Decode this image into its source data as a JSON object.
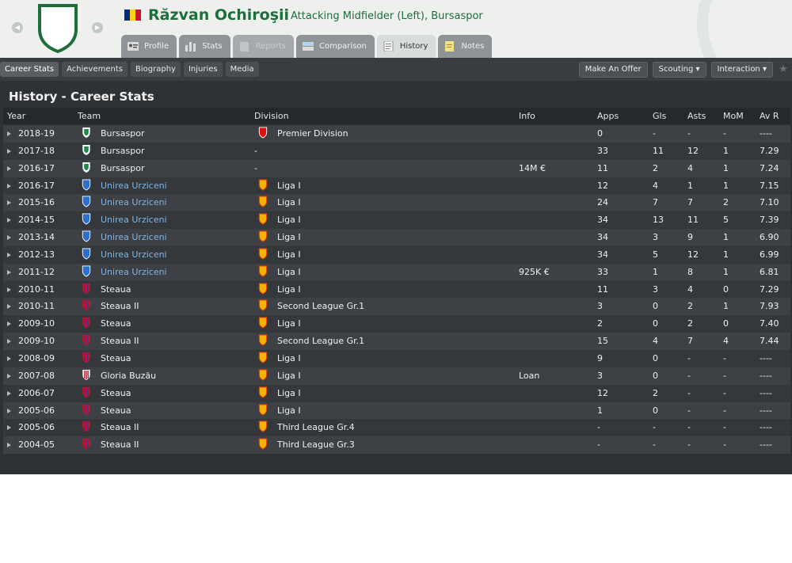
{
  "header": {
    "player_name": "Răzvan Ochiroşii",
    "player_role": "Attacking Midfielder (Left), Bursaspor",
    "tabs": [
      {
        "label": "Profile",
        "icon": "profile-card-icon",
        "state": "normal"
      },
      {
        "label": "Stats",
        "icon": "stats-bars-icon",
        "state": "normal"
      },
      {
        "label": "Reports",
        "icon": "reports-icon",
        "state": "disabled"
      },
      {
        "label": "Comparison",
        "icon": "comparison-icon",
        "state": "normal"
      },
      {
        "label": "History",
        "icon": "history-notepad-icon",
        "state": "active"
      },
      {
        "label": "Notes",
        "icon": "notes-icon",
        "state": "normal"
      }
    ]
  },
  "subnav": {
    "items": [
      "Career Stats",
      "Achievements",
      "Biography",
      "Injuries",
      "Media"
    ],
    "active": "Career Stats",
    "make_offer": "Make An Offer",
    "scouting": "Scouting",
    "interaction": "Interaction"
  },
  "page": {
    "title": "History - Career Stats"
  },
  "table": {
    "headers": [
      "Year",
      "Team",
      "Division",
      "Info",
      "Apps",
      "Gls",
      "Asts",
      "MoM",
      "Av R"
    ],
    "rows": [
      {
        "year": "2018-19",
        "team": "Bursaspor",
        "crest": "bursaspor",
        "division": "Premier Division",
        "dcrest": "turkey",
        "info": "",
        "apps": "0",
        "gls": "-",
        "asts": "-",
        "mom": "-",
        "avr": "----",
        "link": false
      },
      {
        "year": "2017-18",
        "team": "Bursaspor",
        "crest": "bursaspor",
        "division": "-",
        "dcrest": "none",
        "info": "",
        "apps": "33",
        "gls": "11",
        "asts": "12",
        "mom": "1",
        "avr": "7.29",
        "link": false
      },
      {
        "year": "2016-17",
        "team": "Bursaspor",
        "crest": "bursaspor",
        "division": "-",
        "dcrest": "none",
        "info": "14M €",
        "apps": "11",
        "gls": "2",
        "asts": "4",
        "mom": "1",
        "avr": "7.24",
        "link": false
      },
      {
        "year": "2016-17",
        "team": "Unirea Urziceni",
        "crest": "unirea",
        "division": "Liga I",
        "dcrest": "romania",
        "info": "",
        "apps": "12",
        "gls": "4",
        "asts": "1",
        "mom": "1",
        "avr": "7.15",
        "link": true
      },
      {
        "year": "2015-16",
        "team": "Unirea Urziceni",
        "crest": "unirea",
        "division": "Liga I",
        "dcrest": "romania",
        "info": "",
        "apps": "24",
        "gls": "7",
        "asts": "7",
        "mom": "2",
        "avr": "7.10",
        "link": true
      },
      {
        "year": "2014-15",
        "team": "Unirea Urziceni",
        "crest": "unirea",
        "division": "Liga I",
        "dcrest": "romania",
        "info": "",
        "apps": "34",
        "gls": "13",
        "asts": "11",
        "mom": "5",
        "avr": "7.39",
        "link": true
      },
      {
        "year": "2013-14",
        "team": "Unirea Urziceni",
        "crest": "unirea",
        "division": "Liga I",
        "dcrest": "romania",
        "info": "",
        "apps": "34",
        "gls": "3",
        "asts": "9",
        "mom": "1",
        "avr": "6.90",
        "link": true
      },
      {
        "year": "2012-13",
        "team": "Unirea Urziceni",
        "crest": "unirea",
        "division": "Liga I",
        "dcrest": "romania",
        "info": "",
        "apps": "34",
        "gls": "5",
        "asts": "12",
        "mom": "1",
        "avr": "6.99",
        "link": true
      },
      {
        "year": "2011-12",
        "team": "Unirea Urziceni",
        "crest": "unirea",
        "division": "Liga I",
        "dcrest": "romania",
        "info": "925K €",
        "apps": "33",
        "gls": "1",
        "asts": "8",
        "mom": "1",
        "avr": "6.81",
        "link": true
      },
      {
        "year": "2010-11",
        "team": "Steaua",
        "crest": "steaua",
        "division": "Liga I",
        "dcrest": "romania",
        "info": "",
        "apps": "11",
        "gls": "3",
        "asts": "4",
        "mom": "0",
        "avr": "7.29",
        "link": false
      },
      {
        "year": "2010-11",
        "team": "Steaua II",
        "crest": "steaua",
        "division": "Second League Gr.1",
        "dcrest": "romania",
        "info": "",
        "apps": "3",
        "gls": "0",
        "asts": "2",
        "mom": "1",
        "avr": "7.93",
        "link": false
      },
      {
        "year": "2009-10",
        "team": "Steaua",
        "crest": "steaua",
        "division": "Liga I",
        "dcrest": "romania",
        "info": "",
        "apps": "2",
        "gls": "0",
        "asts": "2",
        "mom": "0",
        "avr": "7.40",
        "link": false
      },
      {
        "year": "2009-10",
        "team": "Steaua II",
        "crest": "steaua",
        "division": "Second League Gr.1",
        "dcrest": "romania",
        "info": "",
        "apps": "15",
        "gls": "4",
        "asts": "7",
        "mom": "4",
        "avr": "7.44",
        "link": false
      },
      {
        "year": "2008-09",
        "team": "Steaua",
        "crest": "steaua",
        "division": "Liga I",
        "dcrest": "romania",
        "info": "",
        "apps": "9",
        "gls": "0",
        "asts": "-",
        "mom": "-",
        "avr": "----",
        "link": false
      },
      {
        "year": "2007-08",
        "team": "Gloria Buzău",
        "crest": "gloria",
        "division": "Liga I",
        "dcrest": "romania",
        "info": "Loan",
        "apps": "3",
        "gls": "0",
        "asts": "-",
        "mom": "-",
        "avr": "----",
        "link": false
      },
      {
        "year": "2006-07",
        "team": "Steaua",
        "crest": "steaua",
        "division": "Liga I",
        "dcrest": "romania",
        "info": "",
        "apps": "12",
        "gls": "2",
        "asts": "-",
        "mom": "-",
        "avr": "----",
        "link": false
      },
      {
        "year": "2005-06",
        "team": "Steaua",
        "crest": "steaua",
        "division": "Liga I",
        "dcrest": "romania",
        "info": "",
        "apps": "1",
        "gls": "0",
        "asts": "-",
        "mom": "-",
        "avr": "----",
        "link": false
      },
      {
        "year": "2005-06",
        "team": "Steaua II",
        "crest": "steaua",
        "division": "Third League Gr.4",
        "dcrest": "romania",
        "info": "",
        "apps": "-",
        "gls": "-",
        "asts": "-",
        "mom": "-",
        "avr": "----",
        "link": false
      },
      {
        "year": "2004-05",
        "team": "Steaua II",
        "crest": "steaua",
        "division": "Third League Gr.3",
        "dcrest": "romania",
        "info": "",
        "apps": "-",
        "gls": "-",
        "asts": "-",
        "mom": "-",
        "avr": "----",
        "link": false
      }
    ]
  },
  "colors": {
    "brand_green": "#1d6e3b",
    "link_blue": "#7fb4e6",
    "panel_bg": "#2f3235",
    "flag": [
      "#002b7f",
      "#fcd116",
      "#ce1126"
    ]
  },
  "icons": {
    "nav_back": "arrow-left-icon",
    "nav_forward": "arrow-right-icon",
    "club_crest": "bursaspor-crest-icon",
    "flag": "romania-flag-icon",
    "dropdown": "caret-down-icon",
    "favourite": "star-icon",
    "row_expand": "triangle-right-icon"
  }
}
